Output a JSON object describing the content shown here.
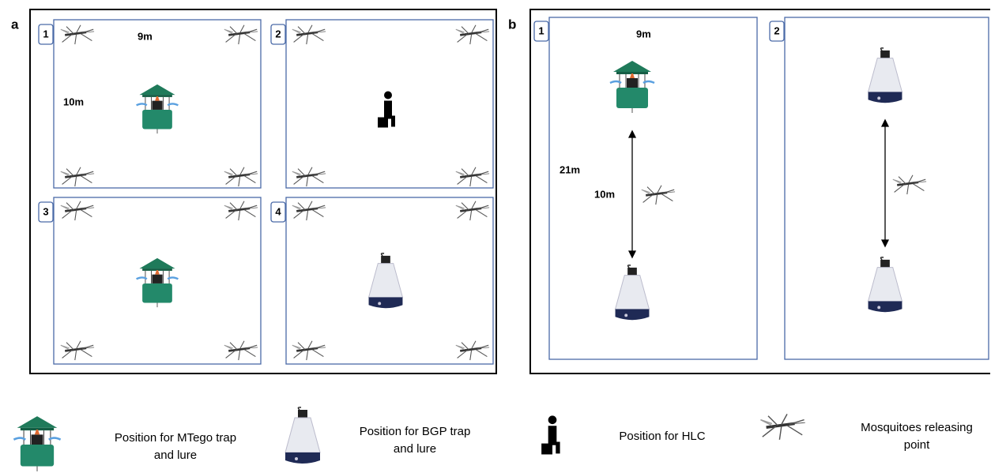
{
  "panel_a": {
    "label": "a",
    "rooms": [
      {
        "number": "1",
        "width_label": "9m",
        "height_label": "10m"
      },
      {
        "number": "2"
      },
      {
        "number": "3"
      },
      {
        "number": "4"
      }
    ]
  },
  "panel_b": {
    "label": "b",
    "rooms": [
      {
        "number": "1",
        "width_label": "9m",
        "length_label": "21m",
        "distance_label": "10m"
      },
      {
        "number": "2"
      }
    ]
  },
  "legend": [
    {
      "lines": [
        "Position for MTego trap",
        "and lure"
      ]
    },
    {
      "lines": [
        "Position for BGP trap",
        "and lure"
      ]
    },
    {
      "lines": [
        "Position for HLC"
      ]
    },
    {
      "lines": [
        "Mosquitoes releasing",
        "point"
      ]
    }
  ]
}
